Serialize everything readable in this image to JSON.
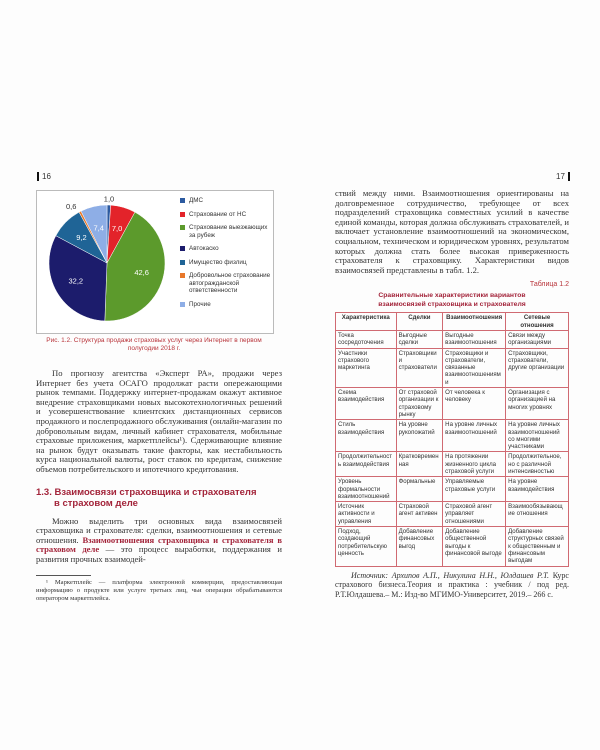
{
  "left_page": {
    "number": "16",
    "caption": "Рис. 1.2. Структура продажи страховых услуг через Интернет в первом полугодии 2018 г.",
    "paragraph1": "По прогнозу агентства «Эксперт РА», продажи через Интернет без учета ОСАГО продолжат расти опережающими рынок темпами. Поддержку интернет-продажам окажут активное внедрение страховщиками новых высокотехнологичных решений и усовершенствование клиентских дистанционных сервисов продажного и послепродажного обслуживания (онлайн-магазин по добровольным видам, личный кабинет страхователя, мобильные страховые приложения, маркетплейсы¹). Сдерживающие влияние на рынок будут оказывать такие факторы, как нестабильность курса национальной валюты, рост ставок по кредитам, снижение объемов потребительского и ипотечного кредитования.",
    "heading_line1": "1.3. Взаимосвязи страховщика и страхователя",
    "heading_line2": "в страховом деле",
    "paragraph2_start": "Можно выделить три основных вида взаимосвязей страховщика и страхователя: сделки, взаимоотношения и сетевые отношения. ",
    "paragraph2_highlight": "Взаимоотношения страховщика и страхователя в страховом деле",
    "paragraph2_end": " — это процесс выработки, поддержания и развития прочных взаимодей-",
    "footnote": "¹ Маркетплейс — платформа электронной коммерции, предоставляющая информацию о продукте или услуге третьих лиц, чьи операции обрабатываются оператором маркетплейса."
  },
  "chart_data": {
    "type": "pie",
    "title": "",
    "unit": "%",
    "slices": [
      {
        "name": "ДМС",
        "value": 1.0,
        "color": "#2c5aa0"
      },
      {
        "name": "Страхование от НС",
        "value": 7.0,
        "color": "#e3232a"
      },
      {
        "name": "Страхование выезжающих за рубеж",
        "value": 42.6,
        "color": "#5c9a2c"
      },
      {
        "name": "Автокаско",
        "value": 32.2,
        "color": "#1c1c6c"
      },
      {
        "name": "Имущество физлиц",
        "value": 9.2,
        "color": "#1f6496"
      },
      {
        "name": "Добровольное страхование автогражданской ответственности",
        "value": 0.6,
        "color": "#e8782a"
      },
      {
        "name": "Прочие",
        "value": 7.4,
        "color": "#8eaee6"
      }
    ],
    "labels": [
      "1,0",
      "7,0",
      "42,6",
      "32,2",
      "9,2",
      "0,6",
      "7,4"
    ],
    "legend_placement": "right"
  },
  "right_page": {
    "number": "17",
    "paragraph": "ствий между ними. Взаимоотношения ориентированы на долговременное сотрудничество, требующее от всех подразделений страховщика совместных усилий в качестве единой команды, которая должна обслуживать страхователей, и включает установление взаимоотношений на экономическом, социальном, техническом и юридическом уровнях, результатом которых должна стать более высокая приверженность страхователя к страховщику. Характеристики видов взаимосвязей представлены в табл. 1.2.",
    "table_number": "Таблица 1.2",
    "table_title_line1": "Сравнительные характеристики вариантов",
    "table_title_line2": "взаимосвязей страховщика и страхователя",
    "table": {
      "headers": [
        "Характеристика",
        "Сделки",
        "Взаимоотношения",
        "Сетевые отношения"
      ],
      "rows": [
        [
          "Точка сосредоточения",
          "Выгодные сделки",
          "Выгодные взаимоотношения",
          "Связи между организациями"
        ],
        [
          "Участники страхового маркетинга",
          "Страховщики и страхователи",
          "Страховщики и страхователи, связанные взаимоотношениями",
          "Страховщики, страхователи, другие организации"
        ],
        [
          "Схема взаимодействия",
          "От страховой организации к страховому рынку",
          "От человека к человеку",
          "Организация с организацией на многих уровнях"
        ],
        [
          "Стиль взаимодействия",
          "На уровне рукопожатий",
          "На уровне личных взаимоотношений",
          "На уровне личных взаимоотношений со многими участниками"
        ],
        [
          "Продолжительность взаимодействия",
          "Кратковременная",
          "На протяжении жизненного цикла страховой услуги",
          "Продолжительное, но с различной интенсивностью"
        ],
        [
          "Уровень формальности взаимоотношений",
          "Формальные",
          "Управляемые страховые услуги",
          "На уровне взаимодействия"
        ],
        [
          "Источник активности и управления",
          "Страховой агент активен",
          "Страховой агент управляет отношениями",
          "Взаимообязывающие отношения"
        ],
        [
          "Подход, создающий потребительскую ценность",
          "Добавление финансовых выгод",
          "Добавление общественной выгоды к финансовой выгоде",
          "Добавление структурных связей к общественным и финансовым выгодам"
        ]
      ]
    },
    "source_label": "Источник: Архипов А.П., Никулина Н.Н., Юлдашев Р.Т.",
    "source_text": " Курс страхового бизнеса.Теория и практика : учебник / под ред. Р.Т.Юлдашева.– М.: Изд-во МГИМО-Университет, 2019.– 266 с."
  }
}
